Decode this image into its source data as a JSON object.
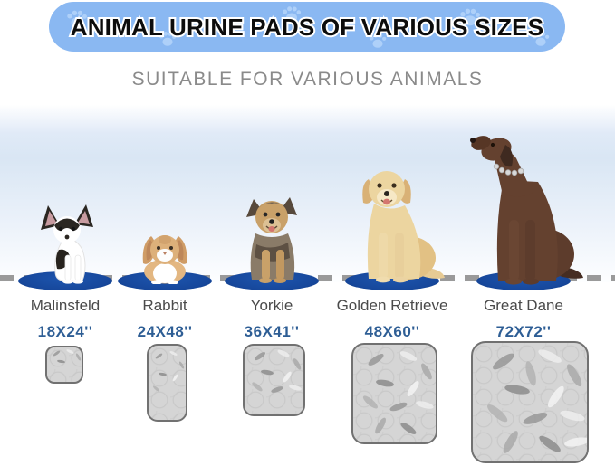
{
  "banner": {
    "title": "ANIMAL URINE PADS OF VARIOUS SIZES"
  },
  "subtitle": "SUITABLE FOR VARIOUS ANIMALS",
  "columns": [
    {
      "animal": "Malinsfeld",
      "pad_size": "18X24''",
      "icon": "chihuahua-icon"
    },
    {
      "animal": "Rabbit",
      "pad_size": "24X48''",
      "icon": "rabbit-icon"
    },
    {
      "animal": "Yorkie",
      "pad_size": "36X41''",
      "icon": "yorkie-icon"
    },
    {
      "animal": "Golden Retrieve",
      "pad_size": "48X60''",
      "icon": "golden-retriever-icon"
    },
    {
      "animal": "Great Dane",
      "pad_size": "72X72''",
      "icon": "great-dane-icon"
    }
  ],
  "colors": {
    "banner_bg": "#8ab8f2",
    "banner_paw": "#aed0f9",
    "size_text": "#2e5e95",
    "name_text": "#4a4a4a",
    "platform_blue": "#17489c",
    "dash_gray": "#9a9a9a",
    "pad_gray": "#d5d5d5",
    "pad_border": "#717171"
  }
}
